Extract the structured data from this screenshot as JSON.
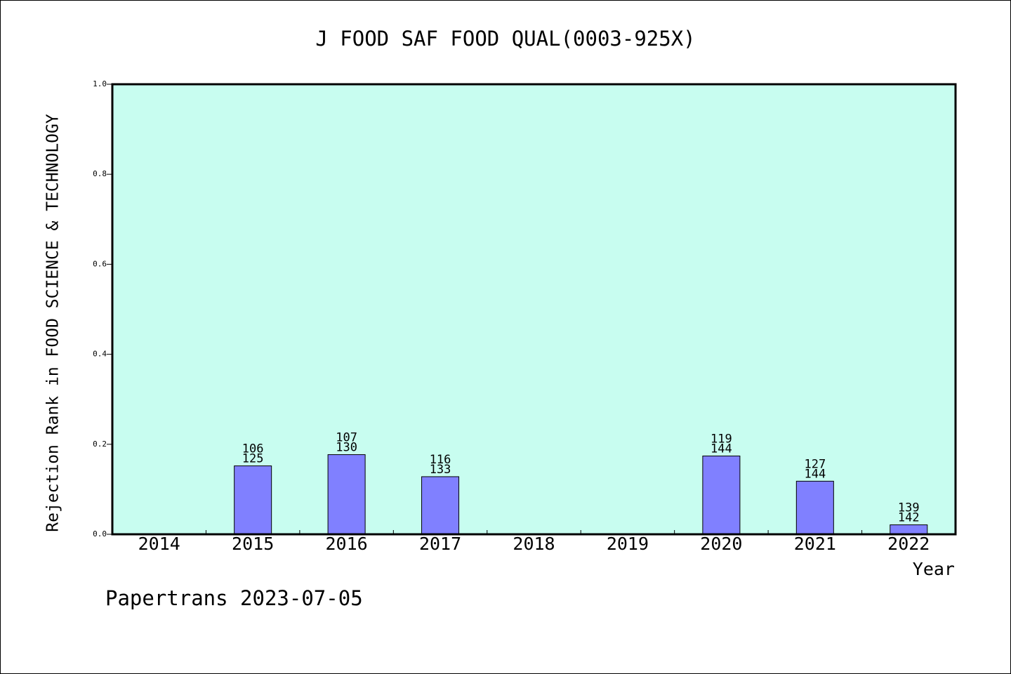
{
  "chart_data": {
    "type": "bar",
    "title": "J FOOD SAF FOOD QUAL(0003-925X)",
    "xlabel": "Year",
    "ylabel": "Rejection Rank in FOOD SCIENCE & TECHNOLOGY",
    "footer": "Papertrans 2023-07-05",
    "categories": [
      "2014",
      "2015",
      "2016",
      "2017",
      "2018",
      "2019",
      "2020",
      "2021",
      "2022"
    ],
    "values": [
      null,
      0.152,
      0.177,
      0.128,
      null,
      null,
      0.174,
      0.118,
      0.021
    ],
    "bar_labels": [
      null,
      [
        "106",
        "125"
      ],
      [
        "107",
        "130"
      ],
      [
        "116",
        "133"
      ],
      null,
      null,
      [
        "119",
        "144"
      ],
      [
        "127",
        "144"
      ],
      [
        "139",
        "142"
      ]
    ],
    "ylim": [
      0,
      1.0
    ],
    "yticks": [
      "0.0",
      "0.2",
      "0.4",
      "0.6",
      "0.8",
      "1.0"
    ],
    "grid": false,
    "colors": {
      "plot_background": "#c8fdf0",
      "bar_fill": "#8080ff",
      "bar_stroke": "#000000",
      "axis": "#000000"
    }
  }
}
